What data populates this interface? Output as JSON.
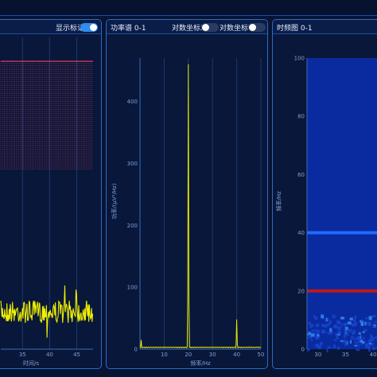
{
  "colors": {
    "accent": "#2f8cf0",
    "signal": "#f0f000",
    "marker": "#ff4060",
    "border": "#2d6bc4",
    "heat_low": "#0a2aa0",
    "heat_line_blue": "#1e6bff",
    "heat_line_red": "#c01818"
  },
  "panel_time": {
    "toggle_label": "显示标记",
    "toggle_on": true,
    "xlabel": "时间/s",
    "x_ticks": [
      "35",
      "40",
      "45"
    ]
  },
  "panel_psd": {
    "title": "功率谱 0-1",
    "log_x_label": "对数坐标X",
    "log_x_on": false,
    "log_y_label": "对数坐标Y",
    "log_y_on": false
  },
  "panel_spec": {
    "title": "时频图 0-1"
  },
  "chart_data": [
    {
      "type": "line",
      "title": "",
      "xlabel": "时间/s",
      "ylabel": "",
      "x_ticks": [
        35,
        40,
        45
      ],
      "xlim": [
        31,
        48
      ],
      "grid": true,
      "series": [
        {
          "values_note": "",
          "band_low": -0.6,
          "band_high": 0.6
        }
      ]
    },
    {
      "type": "line",
      "title": "功率谱 0-1",
      "xlabel": "频率/Hz",
      "ylabel": "功率/(μV²/Hz)",
      "xlim": [
        0,
        50
      ],
      "ylim": [
        0,
        470
      ],
      "x_ticks": [
        0,
        10,
        20,
        30,
        40,
        50
      ],
      "y_ticks": [
        0,
        100,
        200,
        300,
        400
      ],
      "grid": true,
      "peaks": [
        {
          "x": 0.5,
          "y": 15
        },
        {
          "x": 20,
          "y": 460
        },
        {
          "x": 40,
          "y": 48
        }
      ]
    },
    {
      "type": "heatmap",
      "title": "时频图 0-1",
      "xlabel": "",
      "ylabel": "频率/Hz",
      "xlim": [
        28,
        42
      ],
      "ylim": [
        0,
        100
      ],
      "x_ticks": [
        30,
        35,
        40
      ],
      "y_ticks": [
        0,
        20,
        40,
        60,
        80,
        100
      ],
      "bands": [
        {
          "freq": 20,
          "color": "heat_line_red"
        },
        {
          "freq": 40,
          "color": "heat_line_blue"
        }
      ]
    }
  ]
}
